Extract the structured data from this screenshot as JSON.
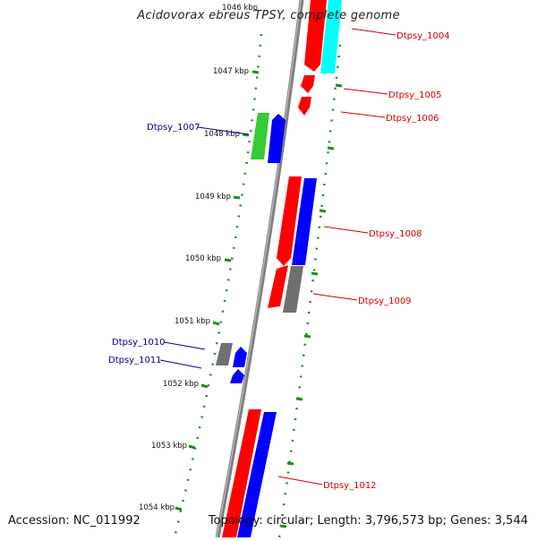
{
  "title": "Acidovorax ebreus TPSY, complete genome",
  "footer": {
    "accession": "Accession: NC_011992",
    "summary": "Topology: circular; Length: 3,796,573 bp; Genes: 3,544"
  },
  "colors": {
    "backbone": "#808080",
    "tick": "#228b22",
    "red_gene": "#ff0000",
    "blue_gene": "#0000ff",
    "green_gene": "#33cc33",
    "cyan_gene": "#00ffff",
    "gray_gene": "#707070",
    "label_forward": "#cc0000",
    "label_reverse": "#00008b"
  },
  "scale": {
    "labels": [
      "1046 kbp",
      "1047 kbp",
      "1048 kbp",
      "1049 kbp",
      "1050 kbp",
      "1051 kbp",
      "1052 kbp",
      "1053 kbp",
      "1054 kbp"
    ]
  },
  "gene_labels": {
    "Dtpsy_1004": "Dtpsy_1004",
    "Dtpsy_1005": "Dtpsy_1005",
    "Dtpsy_1006": "Dtpsy_1006",
    "Dtpsy_1007": "Dtpsy_1007",
    "Dtpsy_1008": "Dtpsy_1008",
    "Dtpsy_1009": "Dtpsy_1009",
    "Dtpsy_1010": "Dtpsy_1010",
    "Dtpsy_1011": "Dtpsy_1011",
    "Dtpsy_1012": "Dtpsy_1012"
  }
}
